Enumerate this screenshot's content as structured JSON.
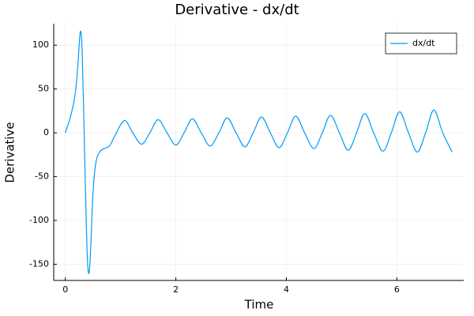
{
  "chart_data": {
    "type": "line",
    "title": "Derivative - dx/dt",
    "xlabel": "Time",
    "ylabel": "Derivative",
    "x": [
      0,
      0.1,
      0.18,
      0.23,
      0.27,
      0.3,
      0.33,
      0.37,
      0.4,
      0.43,
      0.46,
      0.5,
      0.55,
      0.62,
      0.7,
      0.8,
      0.9,
      1.07,
      1.22,
      1.38,
      1.53,
      1.68,
      1.84,
      2.0,
      2.15,
      2.3,
      2.46,
      2.62,
      2.78,
      2.93,
      3.09,
      3.25,
      3.4,
      3.55,
      3.71,
      3.87,
      4.02,
      4.17,
      4.33,
      4.5,
      4.65,
      4.8,
      4.96,
      5.12,
      5.27,
      5.42,
      5.58,
      5.75,
      5.9,
      6.05,
      6.21,
      6.37,
      6.52,
      6.67,
      6.83,
      7.0
    ],
    "series": [
      {
        "name": "dx/dt",
        "color": "#009af9",
        "values": [
          0,
          20,
          45,
          80,
          115,
          100,
          30,
          -80,
          -145,
          -160,
          -130,
          -70,
          -35,
          -22,
          -18,
          -15,
          -3,
          14,
          0,
          -13,
          0,
          15,
          0,
          -14,
          0,
          16,
          0,
          -15,
          0,
          17,
          0,
          -16,
          0,
          18,
          0,
          -17,
          0,
          19,
          0,
          -18,
          0,
          20,
          0,
          -20,
          0,
          22,
          0,
          -21,
          0,
          24,
          0,
          -22,
          0,
          26,
          0,
          -22
        ]
      }
    ],
    "xlim": [
      -0.21,
      7.21
    ],
    "ylim": [
      -168.5,
      124.5
    ],
    "xticks": [
      0,
      2,
      4,
      6
    ],
    "yticks": [
      -150,
      -100,
      -50,
      0,
      50,
      100
    ],
    "grid": true,
    "legend": "top-right"
  }
}
